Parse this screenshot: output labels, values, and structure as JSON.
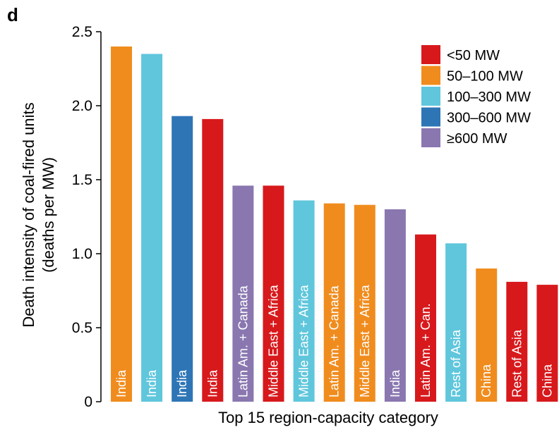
{
  "panel_label": "d",
  "chart_data": {
    "type": "bar",
    "ylabel_line1": "Death intensity of coal-fired units",
    "ylabel_line2": "(deaths per MW)",
    "xlabel": "Top 15 region-capacity category",
    "ylim": [
      0,
      2.5
    ],
    "yticks": [
      "0",
      "0.5",
      "1.0",
      "1.5",
      "2.0",
      "2.5"
    ],
    "grid": false,
    "legend_position": "top-right",
    "legend": [
      {
        "label": "<50 MW",
        "color": "#d7191c"
      },
      {
        "label": "50–100 MW",
        "color": "#f08c1e"
      },
      {
        "label": "100–300 MW",
        "color": "#5fc6dc"
      },
      {
        "label": "300–600 MW",
        "color": "#2e75b6"
      },
      {
        "label": "≥600 MW",
        "color": "#8a77b0"
      }
    ],
    "bars": [
      {
        "label": "India",
        "value": 2.4,
        "category": "50–100 MW",
        "color": "#f08c1e"
      },
      {
        "label": "India",
        "value": 2.35,
        "category": "100–300 MW",
        "color": "#5fc6dc"
      },
      {
        "label": "India",
        "value": 1.93,
        "category": "300–600 MW",
        "color": "#2e75b6"
      },
      {
        "label": "India",
        "value": 1.91,
        "category": "<50 MW",
        "color": "#d7191c"
      },
      {
        "label": "Latin Am. + Canada",
        "value": 1.46,
        "category": "≥600 MW",
        "color": "#8a77b0"
      },
      {
        "label": "Middle East + Africa",
        "value": 1.46,
        "category": "<50 MW",
        "color": "#d7191c"
      },
      {
        "label": "Middle East + Africa",
        "value": 1.36,
        "category": "100–300 MW",
        "color": "#5fc6dc"
      },
      {
        "label": "Latin Am. + Canada",
        "value": 1.34,
        "category": "50–100 MW",
        "color": "#f08c1e"
      },
      {
        "label": "Middle East + Africa",
        "value": 1.33,
        "category": "50–100 MW",
        "color": "#f08c1e"
      },
      {
        "label": "India",
        "value": 1.3,
        "category": "≥600 MW",
        "color": "#8a77b0"
      },
      {
        "label": "Latin Am. + Can.",
        "value": 1.13,
        "category": "<50 MW",
        "color": "#d7191c"
      },
      {
        "label": "Rest of Asia",
        "value": 1.07,
        "category": "100–300 MW",
        "color": "#5fc6dc"
      },
      {
        "label": "China",
        "value": 0.9,
        "category": "50–100 MW",
        "color": "#f08c1e"
      },
      {
        "label": "Rest of Asia",
        "value": 0.81,
        "category": "<50 MW",
        "color": "#d7191c"
      },
      {
        "label": "China",
        "value": 0.79,
        "category": "<50 MW",
        "color": "#d7191c"
      }
    ]
  }
}
